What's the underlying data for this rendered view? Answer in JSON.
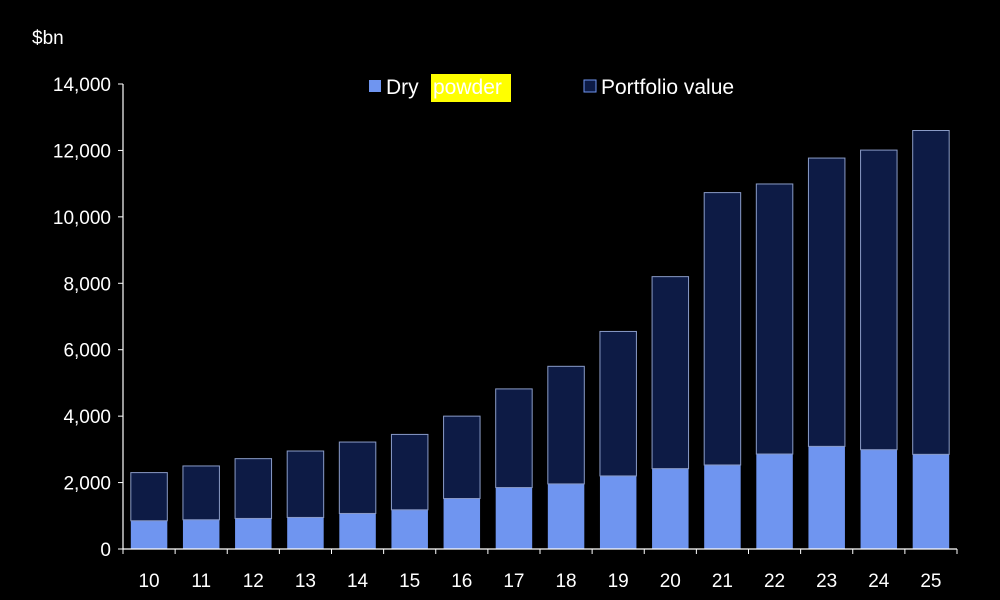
{
  "chart_data": {
    "type": "bar",
    "stacked": true,
    "unit": "$bn",
    "categories": [
      "10",
      "11",
      "12",
      "13",
      "14",
      "15",
      "16",
      "17",
      "18",
      "19",
      "20",
      "21",
      "22",
      "23",
      "24",
      "25"
    ],
    "series": [
      {
        "name": "Dry powder",
        "color": "#6f95f0",
        "highlight": "powder",
        "highlight_color": "#ffff00",
        "values": [
          850,
          880,
          920,
          950,
          1070,
          1180,
          1520,
          1850,
          1960,
          2200,
          2420,
          2530,
          2860,
          3090,
          2990,
          2850
        ]
      },
      {
        "name": "Portfolio value",
        "color": "#0d1b45",
        "values": [
          1450,
          1620,
          1800,
          2000,
          2150,
          2270,
          2480,
          2970,
          3540,
          4350,
          5780,
          8200,
          8130,
          8680,
          9020,
          9750
        ]
      }
    ],
    "y_ticks": [
      "0",
      "2,000",
      "4,000",
      "6,000",
      "8,000",
      "10,000",
      "12,000",
      "14,000"
    ],
    "ylim": [
      0,
      14000
    ],
    "legend": "top",
    "grid": false
  }
}
